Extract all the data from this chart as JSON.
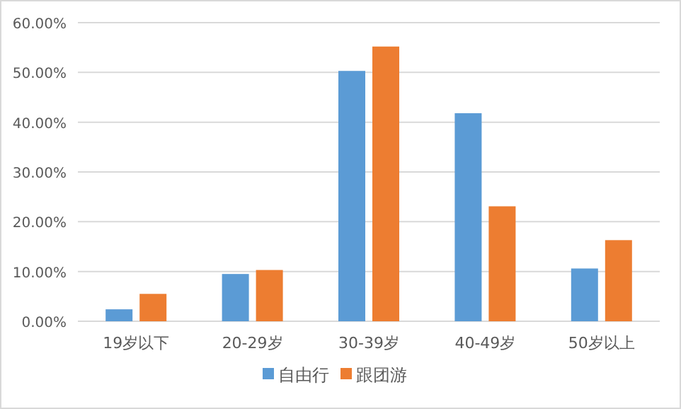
{
  "chart_data": {
    "type": "bar",
    "categories": [
      "19岁以下",
      "20-29岁",
      "30-39岁",
      "40-49岁",
      "50岁以上"
    ],
    "series": [
      {
        "name": "自由行",
        "color": "#5b9bd5",
        "values": [
          2.4,
          9.5,
          50.3,
          41.8,
          10.6
        ]
      },
      {
        "name": "跟团游",
        "color": "#ed7d31",
        "values": [
          5.5,
          10.3,
          55.2,
          23.1,
          16.3
        ]
      }
    ],
    "ylim": [
      0,
      60
    ],
    "yticks": [
      {
        "value": 0,
        "label": "0.00%"
      },
      {
        "value": 10,
        "label": "10.00%"
      },
      {
        "value": 20,
        "label": "20.00%"
      },
      {
        "value": 30,
        "label": "30.00%"
      },
      {
        "value": 40,
        "label": "40.00%"
      },
      {
        "value": 50,
        "label": "50.00%"
      },
      {
        "value": 60,
        "label": "60.00%"
      }
    ],
    "grid": "y",
    "legend": "bottom"
  }
}
